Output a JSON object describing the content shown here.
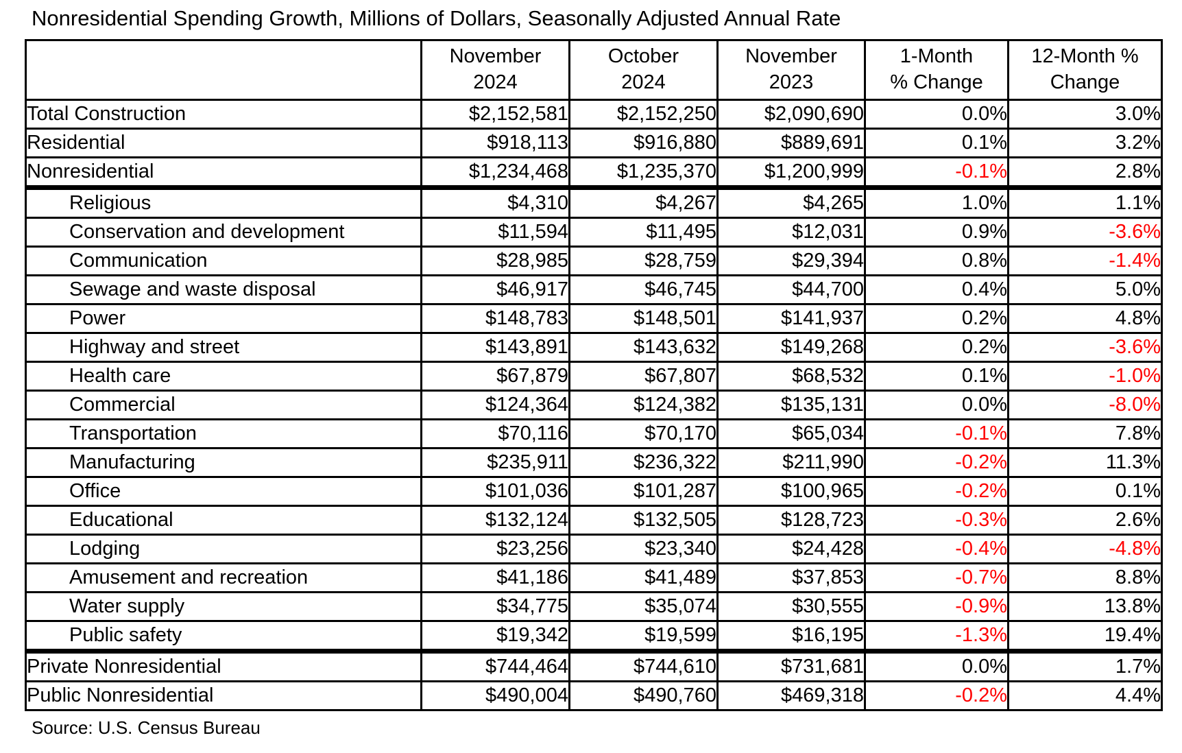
{
  "title": "Nonresidential Spending Growth, Millions of Dollars, Seasonally Adjusted Annual Rate",
  "source": "Source: U.S. Census Bureau",
  "colors": {
    "text": "#000000",
    "negative_value": "#ff0000",
    "border": "#000000",
    "background": "#ffffff"
  },
  "chart_data": {
    "type": "table",
    "title": "Nonresidential Spending Growth, Millions of Dollars, Seasonally Adjusted Annual Rate",
    "source": "Source: U.S. Census Bureau",
    "columns": [
      [
        "",
        ""
      ],
      [
        "November",
        "2024"
      ],
      [
        "October",
        "2024"
      ],
      [
        "November",
        "2023"
      ],
      [
        "1-Month",
        "% Change"
      ],
      [
        "12-Month %",
        "Change"
      ]
    ],
    "rows": [
      {
        "label": "Total Construction",
        "indent": false,
        "thick_below": false,
        "values": [
          "$2,152,581",
          "$2,152,250",
          "$2,090,690",
          "0.0%",
          "3.0%"
        ]
      },
      {
        "label": "Residential",
        "indent": false,
        "thick_below": false,
        "values": [
          "$918,113",
          "$916,880",
          "$889,691",
          "0.1%",
          "3.2%"
        ]
      },
      {
        "label": "Nonresidential",
        "indent": false,
        "thick_below": true,
        "values": [
          "$1,234,468",
          "$1,235,370",
          "$1,200,999",
          "-0.1%",
          "2.8%"
        ]
      },
      {
        "label": "Religious",
        "indent": true,
        "thick_below": false,
        "values": [
          "$4,310",
          "$4,267",
          "$4,265",
          "1.0%",
          "1.1%"
        ]
      },
      {
        "label": "Conservation and development",
        "indent": true,
        "thick_below": false,
        "values": [
          "$11,594",
          "$11,495",
          "$12,031",
          "0.9%",
          "-3.6%"
        ]
      },
      {
        "label": "Communication",
        "indent": true,
        "thick_below": false,
        "values": [
          "$28,985",
          "$28,759",
          "$29,394",
          "0.8%",
          "-1.4%"
        ]
      },
      {
        "label": "Sewage and waste disposal",
        "indent": true,
        "thick_below": false,
        "values": [
          "$46,917",
          "$46,745",
          "$44,700",
          "0.4%",
          "5.0%"
        ]
      },
      {
        "label": "Power",
        "indent": true,
        "thick_below": false,
        "values": [
          "$148,783",
          "$148,501",
          "$141,937",
          "0.2%",
          "4.8%"
        ]
      },
      {
        "label": "Highway and street",
        "indent": true,
        "thick_below": false,
        "values": [
          "$143,891",
          "$143,632",
          "$149,268",
          "0.2%",
          "-3.6%"
        ]
      },
      {
        "label": "Health care",
        "indent": true,
        "thick_below": false,
        "values": [
          "$67,879",
          "$67,807",
          "$68,532",
          "0.1%",
          "-1.0%"
        ]
      },
      {
        "label": "Commercial",
        "indent": true,
        "thick_below": false,
        "values": [
          "$124,364",
          "$124,382",
          "$135,131",
          "0.0%",
          "-8.0%"
        ]
      },
      {
        "label": "Transportation",
        "indent": true,
        "thick_below": false,
        "values": [
          "$70,116",
          "$70,170",
          "$65,034",
          "-0.1%",
          "7.8%"
        ]
      },
      {
        "label": "Manufacturing",
        "indent": true,
        "thick_below": false,
        "values": [
          "$235,911",
          "$236,322",
          "$211,990",
          "-0.2%",
          "11.3%"
        ]
      },
      {
        "label": "Office",
        "indent": true,
        "thick_below": false,
        "values": [
          "$101,036",
          "$101,287",
          "$100,965",
          "-0.2%",
          "0.1%"
        ]
      },
      {
        "label": "Educational",
        "indent": true,
        "thick_below": false,
        "values": [
          "$132,124",
          "$132,505",
          "$128,723",
          "-0.3%",
          "2.6%"
        ]
      },
      {
        "label": "Lodging",
        "indent": true,
        "thick_below": false,
        "values": [
          "$23,256",
          "$23,340",
          "$24,428",
          "-0.4%",
          "-4.8%"
        ]
      },
      {
        "label": "Amusement and recreation",
        "indent": true,
        "thick_below": false,
        "values": [
          "$41,186",
          "$41,489",
          "$37,853",
          "-0.7%",
          "8.8%"
        ]
      },
      {
        "label": "Water supply",
        "indent": true,
        "thick_below": false,
        "values": [
          "$34,775",
          "$35,074",
          "$30,555",
          "-0.9%",
          "13.8%"
        ]
      },
      {
        "label": "Public safety",
        "indent": true,
        "thick_below": true,
        "values": [
          "$19,342",
          "$19,599",
          "$16,195",
          "-1.3%",
          "19.4%"
        ]
      },
      {
        "label": "Private Nonresidential",
        "indent": false,
        "thick_below": false,
        "values": [
          "$744,464",
          "$744,610",
          "$731,681",
          "0.0%",
          "1.7%"
        ]
      },
      {
        "label": "Public Nonresidential",
        "indent": false,
        "thick_below": false,
        "values": [
          "$490,004",
          "$490,760",
          "$469,318",
          "-0.2%",
          "4.4%"
        ]
      }
    ]
  }
}
